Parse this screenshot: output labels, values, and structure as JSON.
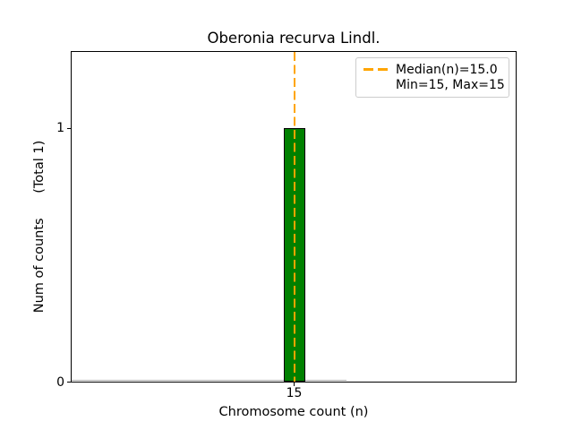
{
  "figure": {
    "title": "Oberonia recurva Lindl.",
    "xlabel": "Chromosome count (n)",
    "ylabel": "Num of counts      (Total 1)",
    "xtick": "15",
    "ytick_one": "1",
    "ytick_zero": "0",
    "legend": {
      "median_label": "Median(n)=15.0",
      "minmax_label": "Min=15, Max=15"
    },
    "colors": {
      "bar_fill": "#008000",
      "bar_edge": "#000000",
      "median_line": "#FFA500",
      "legend_border": "#cccccc",
      "baseline_gray": "#b0b0b0"
    }
  },
  "chart_data": {
    "type": "bar",
    "title": "Oberonia recurva Lindl.",
    "xlabel": "Chromosome count (n)",
    "ylabel": "Num of counts (Total 1)",
    "categories": [
      15
    ],
    "values": [
      1
    ],
    "total_counts": 1,
    "median_n": 15.0,
    "min_n": 15,
    "max_n": 15,
    "xticks": [
      15
    ],
    "yticks": [
      0,
      1
    ],
    "ylim": [
      0,
      1.3
    ],
    "grid": false,
    "legend_position": "upper right",
    "legend_entries": [
      "Median(n)=15.0",
      "Min=15, Max=15"
    ],
    "annotations": [
      "dashed vertical median line at x=15"
    ]
  }
}
